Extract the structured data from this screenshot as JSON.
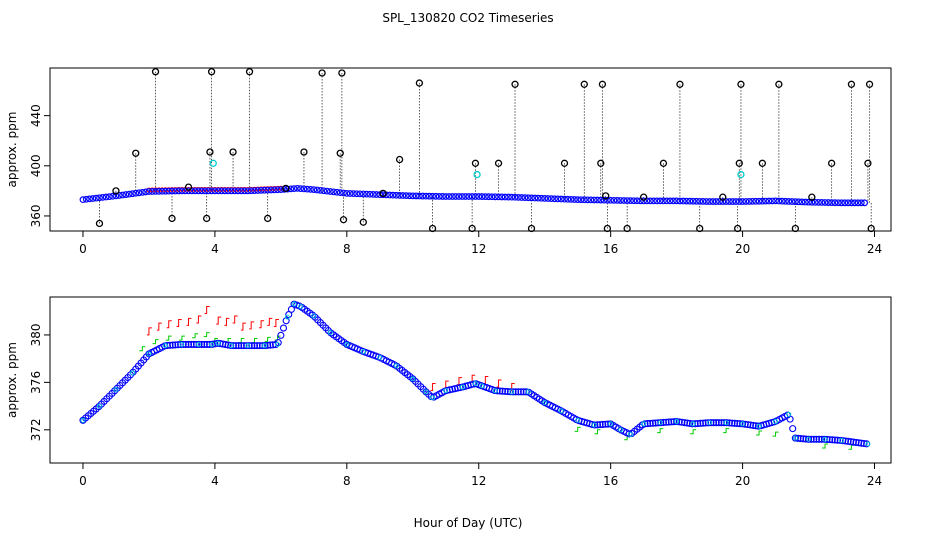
{
  "title": "SPL_130820  CO2 Timeseries",
  "xlabel": "Hour of Day (UTC)",
  "colors": {
    "axis": "#000000",
    "primary": "#0000ff",
    "outlier": "#000000",
    "flag": "#00cccc",
    "series_red": "#ff0000",
    "series_green": "#00cc00"
  },
  "chart_data": [
    {
      "type": "scatter",
      "panel": "top",
      "ylabel": "approx. ppm",
      "xlim": [
        -1,
        24.5
      ],
      "ylim": [
        348,
        478
      ],
      "xticks": [
        0,
        4,
        8,
        12,
        16,
        20,
        24
      ],
      "yticks": [
        360,
        400,
        440
      ],
      "baseline_curve": {
        "x": [
          0,
          1,
          2,
          3,
          4,
          5,
          6,
          6.5,
          7,
          8,
          9,
          10,
          11,
          12,
          13,
          14,
          15,
          16,
          17,
          18,
          19,
          20,
          21,
          22,
          23,
          23.8
        ],
        "y": [
          373,
          376,
          379.5,
          380,
          380,
          380,
          381,
          382,
          381,
          378,
          377,
          376,
          375.5,
          375.5,
          375,
          374,
          373,
          372.5,
          372,
          372,
          371.5,
          371.5,
          372,
          371,
          370.5,
          370.5
        ]
      },
      "outliers": {
        "x": [
          0.5,
          1.0,
          1.6,
          2.2,
          2.7,
          3.2,
          3.75,
          3.85,
          3.9,
          4.55,
          5.05,
          5.6,
          6.15,
          6.7,
          7.25,
          7.8,
          7.85,
          7.9,
          8.5,
          9.1,
          9.6,
          10.2,
          10.6,
          11.8,
          11.9,
          12.6,
          13.1,
          13.6,
          14.6,
          15.2,
          15.7,
          15.75,
          15.85,
          15.9,
          16.5,
          17.0,
          17.6,
          18.1,
          18.7,
          19.4,
          19.85,
          19.9,
          19.95,
          20.6,
          21.1,
          21.6,
          22.1,
          22.7,
          23.3,
          23.8,
          23.85,
          23.9
        ],
        "y": [
          354,
          380,
          410,
          475,
          358,
          383,
          358,
          411,
          475,
          411,
          475,
          358,
          382,
          411,
          474,
          410,
          474,
          357,
          355,
          378,
          405,
          466,
          350,
          350,
          402,
          402,
          465,
          350,
          402,
          465,
          402,
          465,
          376,
          350,
          350,
          375,
          402,
          465,
          350,
          375,
          350,
          402,
          465,
          402,
          465,
          350,
          375,
          402,
          465,
          402,
          465,
          350
        ]
      },
      "flags": {
        "x": [
          3.95,
          11.95,
          19.95
        ],
        "y": [
          402,
          393,
          393
        ]
      }
    },
    {
      "type": "scatter",
      "panel": "bottom",
      "ylabel": "approx. ppm",
      "xlim": [
        -1,
        24.5
      ],
      "ylim": [
        369.2,
        383.2
      ],
      "xticks": [
        0,
        4,
        8,
        12,
        16,
        20,
        24
      ],
      "yticks": [
        372,
        376,
        380
      ],
      "series": [
        {
          "name": "blue",
          "x": [
            0,
            0.5,
            1,
            1.5,
            2,
            2.5,
            3,
            3.5,
            3.9,
            4.1,
            4.5,
            5,
            5.5,
            5.9,
            6.2,
            6.4,
            6.6,
            7,
            7.5,
            8,
            8.5,
            9,
            9.5,
            10,
            10.4,
            10.6,
            11,
            11.5,
            11.9,
            12.1,
            12.5,
            13,
            13.5,
            14,
            14.5,
            15,
            15.5,
            16,
            16.3,
            16.6,
            17,
            17.5,
            18,
            18.5,
            19,
            19.5,
            20,
            20.5,
            21,
            21.4,
            21.6,
            22,
            22.5,
            23,
            23.8
          ],
          "y": [
            372.8,
            374.0,
            375.4,
            376.8,
            378.4,
            379.1,
            379.2,
            379.2,
            379.2,
            379.3,
            379.1,
            379.1,
            379.1,
            379.2,
            381.5,
            382.6,
            382.4,
            381.6,
            380.2,
            379.2,
            378.6,
            378.1,
            377.4,
            376.3,
            375.2,
            374.7,
            375.3,
            375.6,
            375.9,
            375.7,
            375.3,
            375.2,
            375.2,
            374.3,
            373.6,
            372.8,
            372.4,
            372.5,
            372.0,
            371.6,
            372.5,
            372.6,
            372.7,
            372.5,
            372.6,
            372.6,
            372.5,
            372.3,
            372.7,
            373.3,
            371.3,
            371.2,
            371.2,
            371.1,
            370.8
          ]
        },
        {
          "name": "red",
          "x": [
            2.0,
            2.3,
            2.6,
            2.9,
            3.2,
            3.5,
            3.75,
            4.1,
            4.35,
            4.6,
            4.85,
            5.1,
            5.4,
            5.65,
            5.85,
            10.6,
            11.0,
            11.4,
            11.8,
            12.2,
            12.6,
            13.0
          ],
          "y": [
            380.6,
            381.0,
            381.2,
            381.3,
            381.4,
            381.6,
            382.4,
            381.5,
            381.4,
            381.6,
            381.0,
            381.1,
            381.2,
            381.4,
            381.3,
            375.9,
            376.1,
            376.4,
            376.6,
            376.5,
            376.2,
            375.9
          ]
        },
        {
          "name": "green",
          "x": [
            1.8,
            2.2,
            2.6,
            3.0,
            3.4,
            3.75,
            4.0,
            4.4,
            4.8,
            5.2,
            5.6,
            5.9,
            15.0,
            15.6,
            16.5,
            17.5,
            18.5,
            19.5,
            20.5,
            21.0,
            22.5,
            23.3
          ],
          "y": [
            379.0,
            379.6,
            379.9,
            379.9,
            380.1,
            380.2,
            379.7,
            379.7,
            379.7,
            379.7,
            379.8,
            379.9,
            372.2,
            372.0,
            371.5,
            372.1,
            372.0,
            372.1,
            371.9,
            371.8,
            370.8,
            370.7
          ]
        }
      ]
    }
  ]
}
